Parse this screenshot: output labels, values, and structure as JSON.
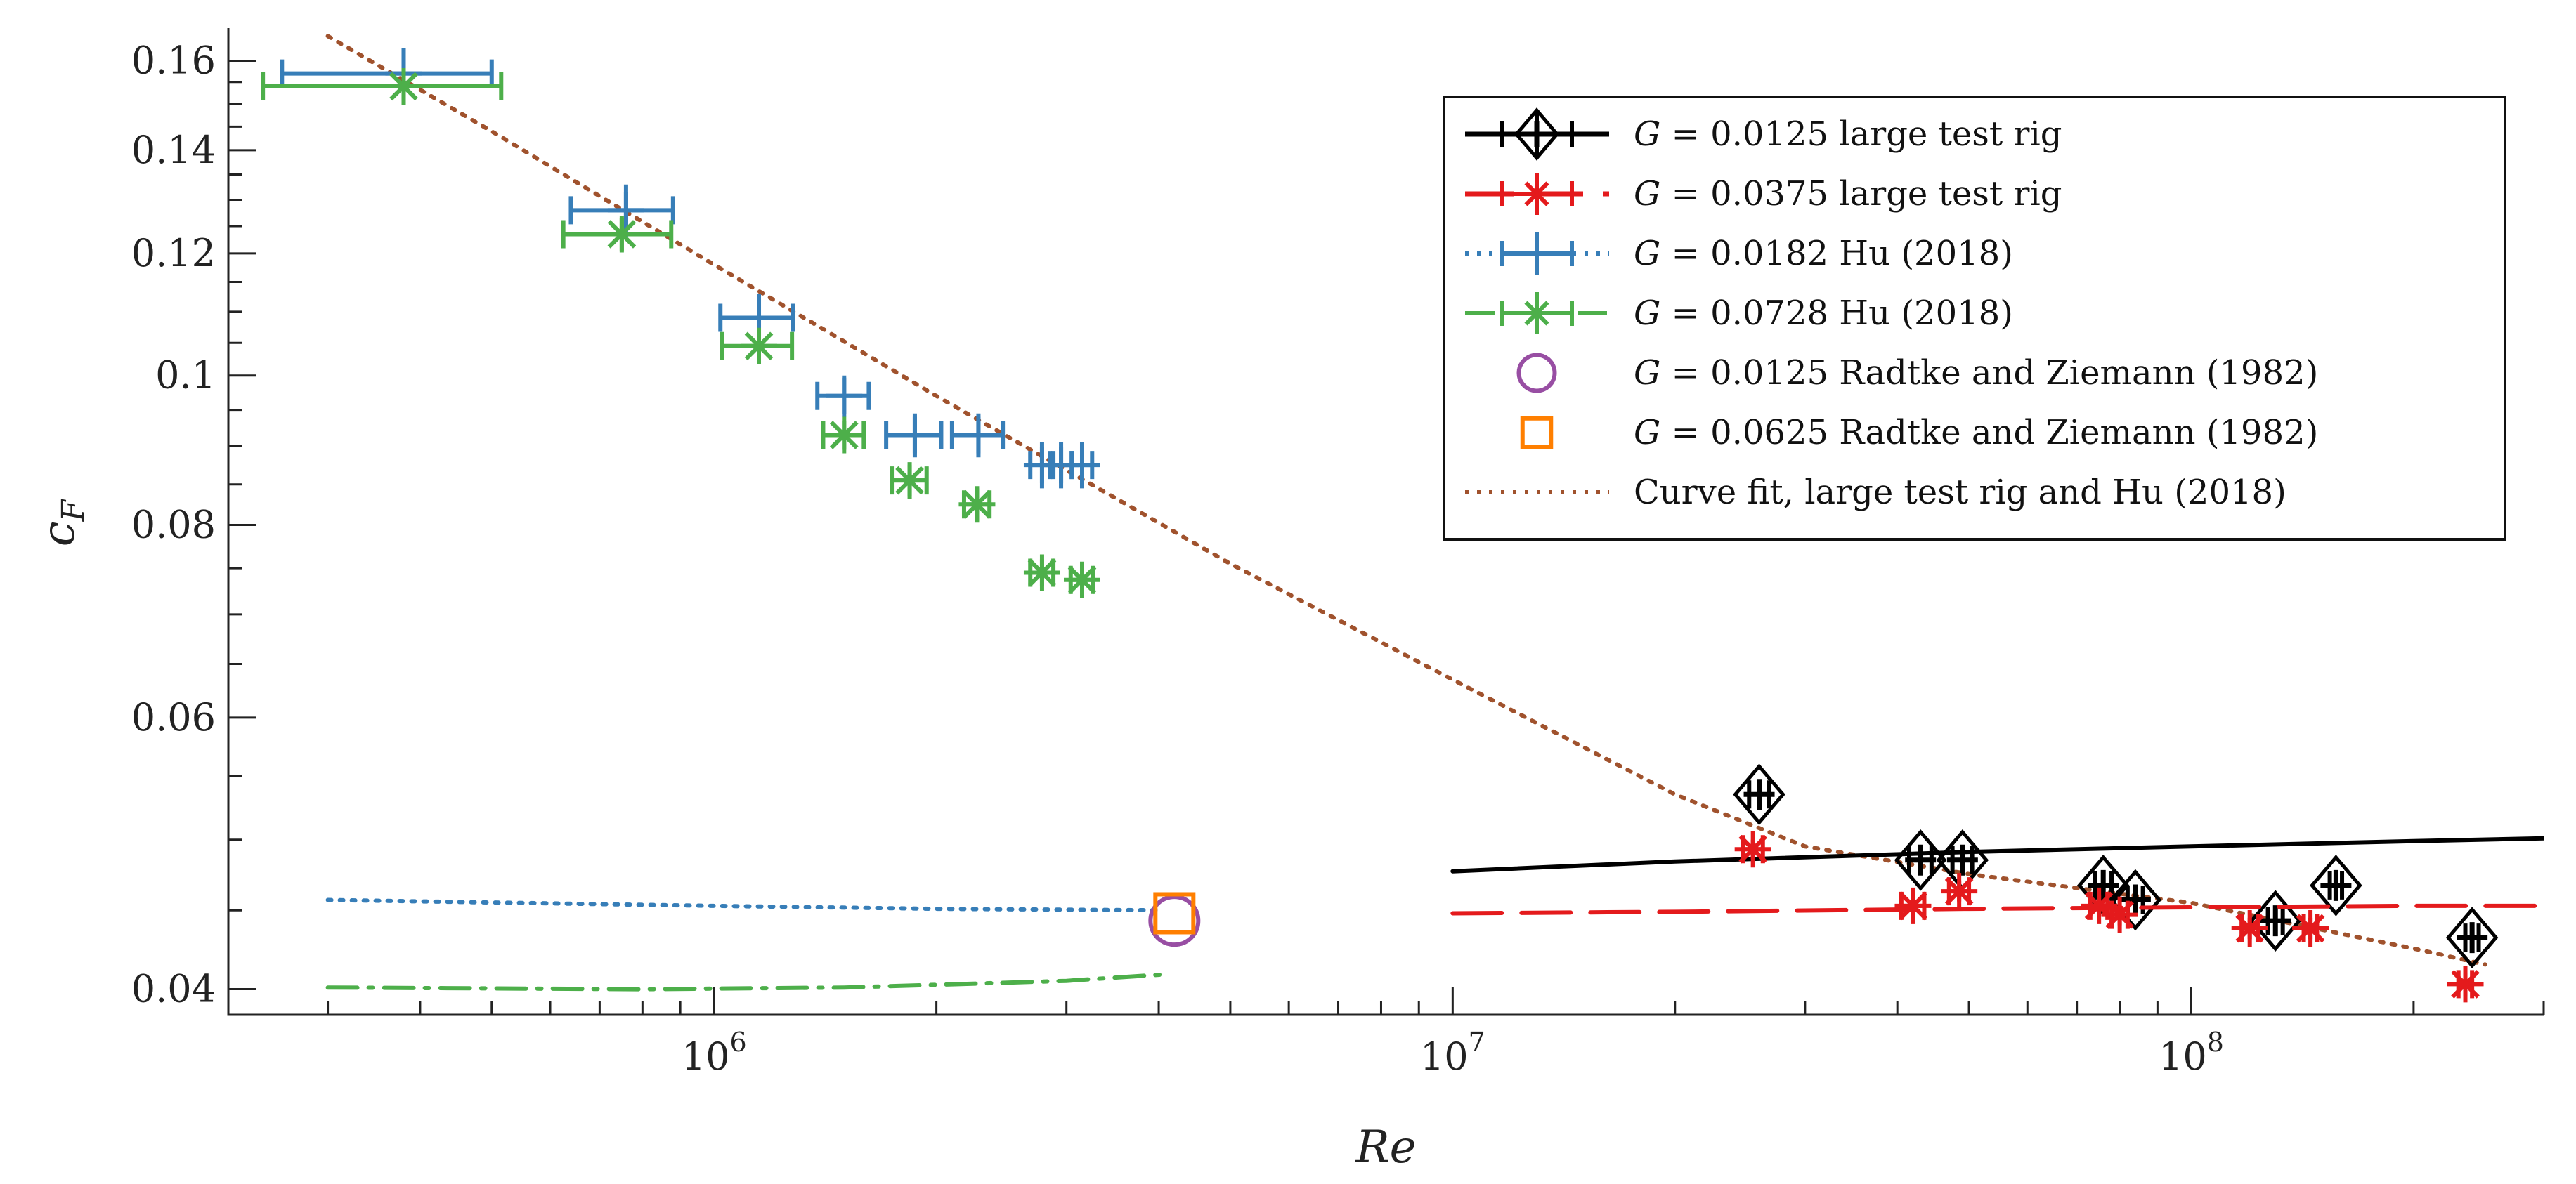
{
  "chart_data": {
    "type": "scatter",
    "title": "",
    "xlabel": "Re",
    "ylabel": "c_F",
    "xscale": "log",
    "yscale": "log",
    "xlim": [
      220000,
      300000000
    ],
    "ylim": [
      0.0385,
      0.168
    ],
    "grid": false,
    "legend_position": "top-right",
    "x_ticks": [
      {
        "value": 1000000,
        "label": "10^6"
      },
      {
        "value": 10000000,
        "label": "10^7"
      },
      {
        "value": 100000000,
        "label": "10^8"
      }
    ],
    "y_ticks": [
      {
        "value": 0.04,
        "label": "0.04"
      },
      {
        "value": 0.06,
        "label": "0.06"
      },
      {
        "value": 0.08,
        "label": "0.08"
      },
      {
        "value": 0.1,
        "label": "0.1"
      },
      {
        "value": 0.12,
        "label": "0.12"
      },
      {
        "value": 0.14,
        "label": "0.14"
      },
      {
        "value": 0.16,
        "label": "0.16"
      }
    ],
    "series": [
      {
        "name": "G = 0.0125 large test rig",
        "legend_math": "G = 0.0125",
        "legend_rest": " large test rig",
        "color": "#000000",
        "marker": "diamond-plus",
        "line_style": "solid",
        "points": [
          {
            "x": 26000000,
            "y": 0.0535,
            "xerr": 800000,
            "yerr": 0.0007
          },
          {
            "x": 43000000,
            "y": 0.0485,
            "xerr": 1500000,
            "yerr": 0.0007
          },
          {
            "x": 49000000,
            "y": 0.0485,
            "xerr": 1500000,
            "yerr": 0.0007
          },
          {
            "x": 76000000,
            "y": 0.0467,
            "xerr": 2000000,
            "yerr": 0.0007
          },
          {
            "x": 84000000,
            "y": 0.0457,
            "xerr": 2000000,
            "yerr": 0.0007
          },
          {
            "x": 130000000,
            "y": 0.0443,
            "xerr": 3000000,
            "yerr": 0.0007
          },
          {
            "x": 157000000,
            "y": 0.0467,
            "xerr": 3000000,
            "yerr": 0.0007
          },
          {
            "x": 240000000,
            "y": 0.0432,
            "xerr": 5000000,
            "yerr": 0.0007
          }
        ],
        "fit_line": {
          "x": [
            10000000,
            20000000,
            50000000,
            100000000,
            200000000,
            300000000
          ],
          "y": [
            0.0477,
            0.0484,
            0.0491,
            0.0495,
            0.0499,
            0.0501
          ]
        }
      },
      {
        "name": "G = 0.0375 large test rig",
        "legend_math": "G = 0.0375",
        "legend_rest": " large test rig",
        "color": "#e41a1c",
        "marker": "asterisk",
        "line_style": "dashed",
        "points": [
          {
            "x": 25500000,
            "y": 0.0493,
            "xerr": 800000,
            "yerr": 0.0007
          },
          {
            "x": 42000000,
            "y": 0.0453,
            "xerr": 1500000,
            "yerr": 0.0007
          },
          {
            "x": 48500000,
            "y": 0.0463,
            "xerr": 1500000,
            "yerr": 0.0007
          },
          {
            "x": 75000000,
            "y": 0.0453,
            "xerr": 2000000,
            "yerr": 0.0007
          },
          {
            "x": 80000000,
            "y": 0.0447,
            "xerr": 2000000,
            "yerr": 0.0007
          },
          {
            "x": 120000000,
            "y": 0.0438,
            "xerr": 3000000,
            "yerr": 0.0007
          },
          {
            "x": 145000000,
            "y": 0.0438,
            "xerr": 3000000,
            "yerr": 0.0007
          },
          {
            "x": 235000000,
            "y": 0.0403,
            "xerr": 5000000,
            "yerr": 0.0007
          }
        ],
        "fit_line": {
          "x": [
            10000000,
            20000000,
            50000000,
            100000000,
            200000000,
            300000000
          ],
          "y": [
            0.0448,
            0.0449,
            0.0451,
            0.0452,
            0.0453,
            0.0453
          ]
        }
      },
      {
        "name": "G = 0.0182 Hu (2018)",
        "legend_math": "G = 0.0182",
        "legend_rest": " Hu (2018)",
        "color": "#377eb8",
        "marker": "plus",
        "line_style": "dotted",
        "points": [
          {
            "x": 380000,
            "y": 0.157,
            "xerr": 120000,
            "yerr": 0.006
          },
          {
            "x": 760000,
            "y": 0.128,
            "xerr": 120000,
            "yerr": 0.005
          },
          {
            "x": 1150000,
            "y": 0.109,
            "xerr": 130000,
            "yerr": 0.004
          },
          {
            "x": 1500000,
            "y": 0.097,
            "xerr": 120000,
            "yerr": 0.003
          },
          {
            "x": 1870000,
            "y": 0.0915,
            "xerr": 160000,
            "yerr": 0.003
          },
          {
            "x": 2280000,
            "y": 0.0915,
            "xerr": 180000,
            "yerr": 0.003
          },
          {
            "x": 2780000,
            "y": 0.0875,
            "xerr": 100000,
            "yerr": 0.003
          },
          {
            "x": 2950000,
            "y": 0.0875,
            "xerr": 100000,
            "yerr": 0.003
          },
          {
            "x": 3150000,
            "y": 0.0875,
            "xerr": 100000,
            "yerr": 0.003
          }
        ],
        "fit_line": {
          "x": [
            300000,
            1000000,
            2000000,
            4000000
          ],
          "y": [
            0.0457,
            0.0453,
            0.0451,
            0.045
          ]
        }
      },
      {
        "name": "G = 0.0728 Hu (2018)",
        "legend_math": "G = 0.0728",
        "legend_rest": " Hu (2018)",
        "color": "#4daf4a",
        "marker": "asterisk",
        "line_style": "dashdot",
        "points": [
          {
            "x": 380000,
            "y": 0.154,
            "xerr": 135000,
            "yerr": 0.003
          },
          {
            "x": 750000,
            "y": 0.1235,
            "xerr": 125000,
            "yerr": 0.003
          },
          {
            "x": 1150000,
            "y": 0.1045,
            "xerr": 125000,
            "yerr": 0.002
          },
          {
            "x": 1500000,
            "y": 0.0915,
            "xerr": 95000,
            "yerr": 0.002
          },
          {
            "x": 1840000,
            "y": 0.0855,
            "xerr": 100000,
            "yerr": 0.002
          },
          {
            "x": 2270000,
            "y": 0.0825,
            "xerr": 90000,
            "yerr": 0.002
          },
          {
            "x": 2780000,
            "y": 0.0745,
            "xerr": 100000,
            "yerr": 0.0015
          },
          {
            "x": 3150000,
            "y": 0.0737,
            "xerr": 110000,
            "yerr": 0.0015
          }
        ],
        "fit_line": {
          "x": [
            300000,
            800000,
            1500000,
            3000000,
            4100000
          ],
          "y": [
            0.0401,
            0.04,
            0.0401,
            0.0405,
            0.0409
          ]
        }
      },
      {
        "name": "G = 0.0125 Radtke and Ziemann (1982)",
        "legend_math": "G = 0.0125",
        "legend_rest": " Radtke and Ziemann (1982)",
        "color": "#984ea3",
        "marker": "circle",
        "line_style": "none",
        "points": [
          {
            "x": 4200000,
            "y": 0.0443
          }
        ]
      },
      {
        "name": "G = 0.0625 Radtke and Ziemann (1982)",
        "legend_math": "G = 0.0625",
        "legend_rest": " Radtke and Ziemann (1982)",
        "color": "#ff7f00",
        "marker": "square",
        "line_style": "none",
        "points": [
          {
            "x": 4200000,
            "y": 0.0448
          }
        ]
      },
      {
        "name": "Curve fit, large test rig and Hu (2018)",
        "legend_math": "",
        "legend_rest": "Curve fit, large test rig and Hu (2018)",
        "color": "#a0522d",
        "marker": "none",
        "line_style": "dotted",
        "curve": {
          "x": [
            300000,
            500000,
            1000000,
            2000000,
            5000000,
            10000000,
            20000000,
            30000000,
            50000000,
            100000000,
            200000000,
            250000000
          ],
          "y": [
            0.166,
            0.144,
            0.118,
            0.097,
            0.0755,
            0.0635,
            0.0535,
            0.0495,
            0.0475,
            0.0455,
            0.0425,
            0.0415
          ]
        }
      }
    ]
  }
}
